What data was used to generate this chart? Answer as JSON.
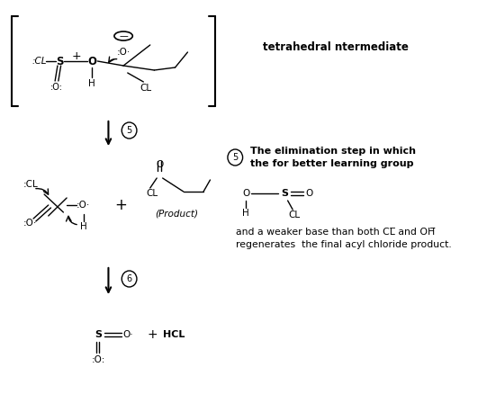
{
  "bg_color": "#ffffff",
  "top_label": "tetrahedral ntermediate",
  "elim_text1": "The elimination step in which",
  "elim_text2": "the for better learning group",
  "weaker_text1": "and a weaker base than both CL̅ and OH̅",
  "weaker_text2": "regenerates  the final acyl chloride product.",
  "product_label": "(Product)",
  "hcl_label": "+ HCL",
  "fig_w": 5.41,
  "fig_h": 4.48,
  "dpi": 100
}
